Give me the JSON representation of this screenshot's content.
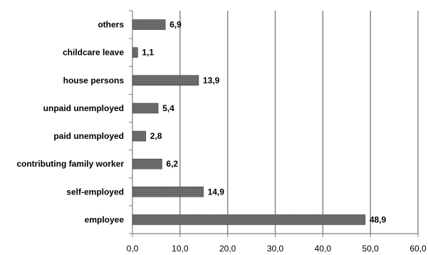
{
  "chart_data": {
    "type": "bar",
    "orientation": "horizontal",
    "title": "",
    "xlabel": "",
    "ylabel": "",
    "categories": [
      "others",
      "childcare leave",
      "house persons",
      "unpaid unemployed",
      "paid unemployed",
      "contributing family worker",
      "self-employed",
      "employee"
    ],
    "values": [
      6.9,
      1.1,
      13.9,
      5.4,
      2.8,
      6.2,
      14.9,
      48.9
    ],
    "value_labels": [
      "6,9",
      "1,1",
      "13,9",
      "5,4",
      "2,8",
      "6,2",
      "14,9",
      "48,9"
    ],
    "xlim": [
      0,
      60
    ],
    "x_ticks": [
      0,
      10,
      20,
      30,
      40,
      50,
      60
    ],
    "x_tick_labels": [
      "0,0",
      "10,0",
      "20,0",
      "30,0",
      "40,0",
      "50,0",
      "60,0"
    ],
    "grid": "vertical",
    "legend": "none",
    "colors": {
      "bar_fill": "#666666",
      "bar_stroke": "#3a3a3a",
      "grid": "#808080",
      "axis": "#808080"
    }
  }
}
